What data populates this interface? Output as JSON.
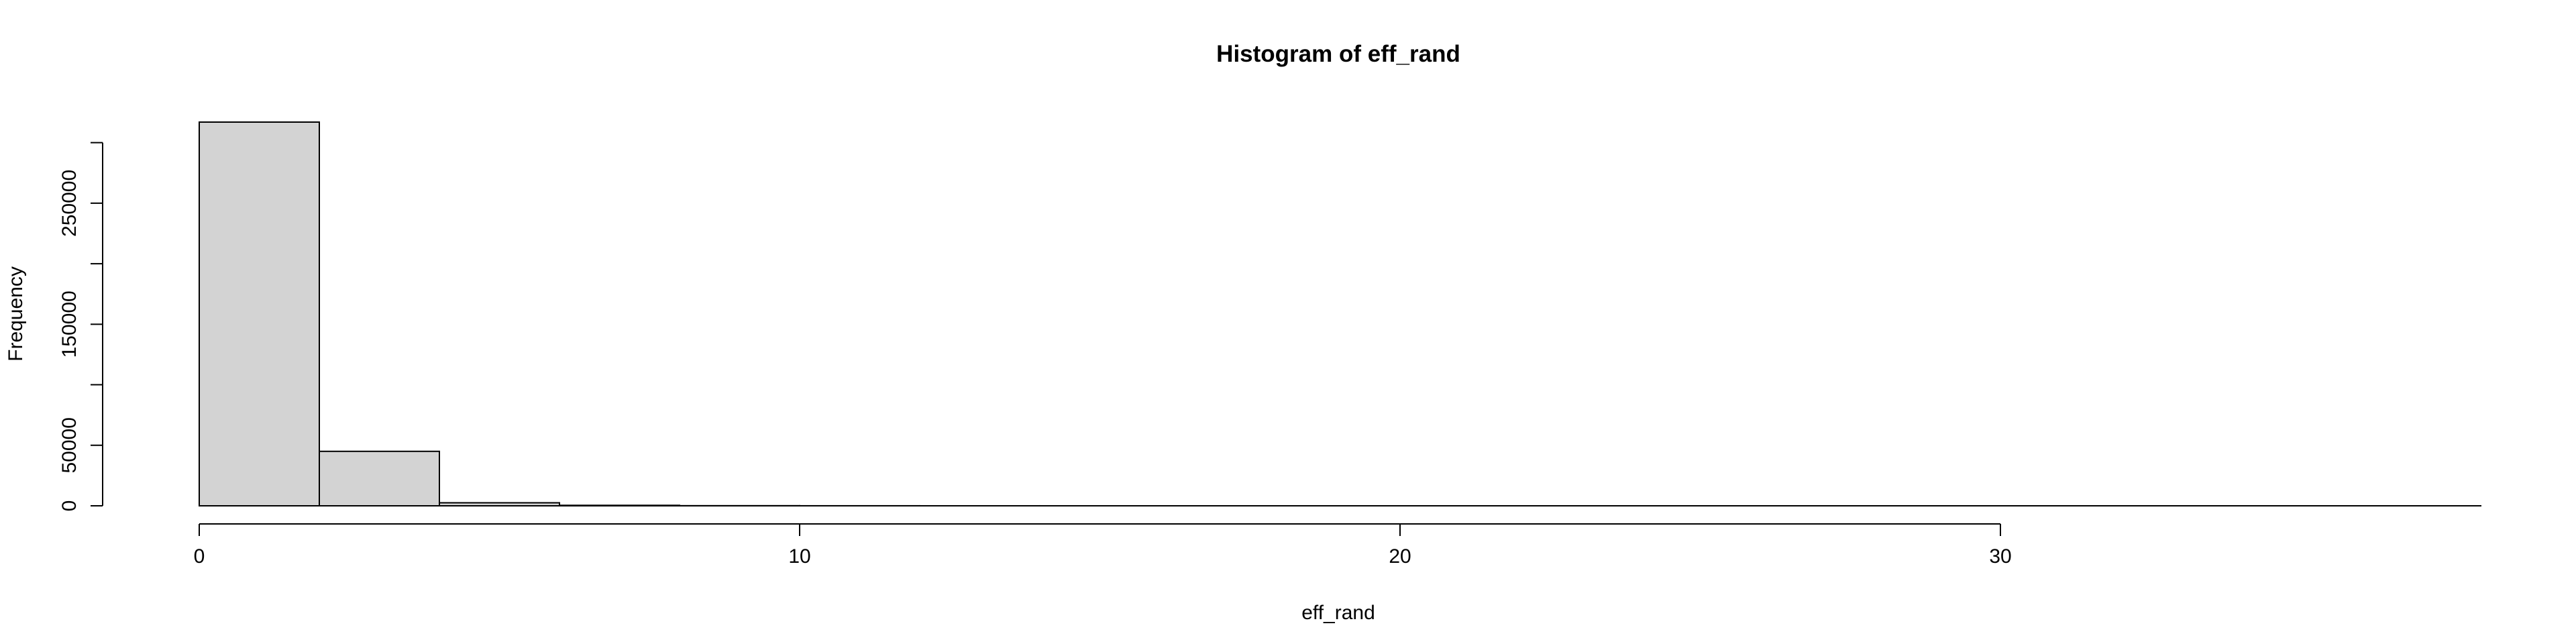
{
  "chart_data": {
    "type": "bar",
    "title": "Histogram of eff_rand",
    "xlabel": "eff_rand",
    "ylabel": "Frequency",
    "bin_width": 2,
    "bins": [
      {
        "from": 0,
        "to": 2,
        "count": 317000
      },
      {
        "from": 2,
        "to": 4,
        "count": 45000
      },
      {
        "from": 4,
        "to": 6,
        "count": 2500
      },
      {
        "from": 6,
        "to": 8,
        "count": 400
      },
      {
        "from": 8,
        "to": 10,
        "count": 100
      },
      {
        "from": 10,
        "to": 12,
        "count": 40
      },
      {
        "from": 12,
        "to": 14,
        "count": 15
      },
      {
        "from": 14,
        "to": 16,
        "count": 8
      },
      {
        "from": 16,
        "to": 18,
        "count": 5
      },
      {
        "from": 18,
        "to": 20,
        "count": 3
      },
      {
        "from": 20,
        "to": 22,
        "count": 2
      },
      {
        "from": 22,
        "to": 24,
        "count": 1
      },
      {
        "from": 24,
        "to": 26,
        "count": 1
      },
      {
        "from": 26,
        "to": 28,
        "count": 1
      },
      {
        "from": 28,
        "to": 30,
        "count": 1
      },
      {
        "from": 30,
        "to": 32,
        "count": 1
      },
      {
        "from": 32,
        "to": 34,
        "count": 1
      },
      {
        "from": 34,
        "to": 36,
        "count": 1
      },
      {
        "from": 36,
        "to": 38,
        "count": 1
      }
    ],
    "xlim": [
      0,
      38
    ],
    "ylim": [
      0,
      317000
    ],
    "x_ticks": [
      0,
      10,
      20,
      30
    ],
    "x_tick_labels": [
      "0",
      "10",
      "20",
      "30"
    ],
    "y_ticks": [
      0,
      50000,
      100000,
      150000,
      200000,
      250000,
      300000
    ],
    "y_tick_labels": [
      "0",
      "50000",
      "",
      "150000",
      "",
      "250000",
      ""
    ],
    "bar_fill": "#d3d3d3",
    "bar_stroke": "#000000",
    "grid": false,
    "legend": "none"
  }
}
